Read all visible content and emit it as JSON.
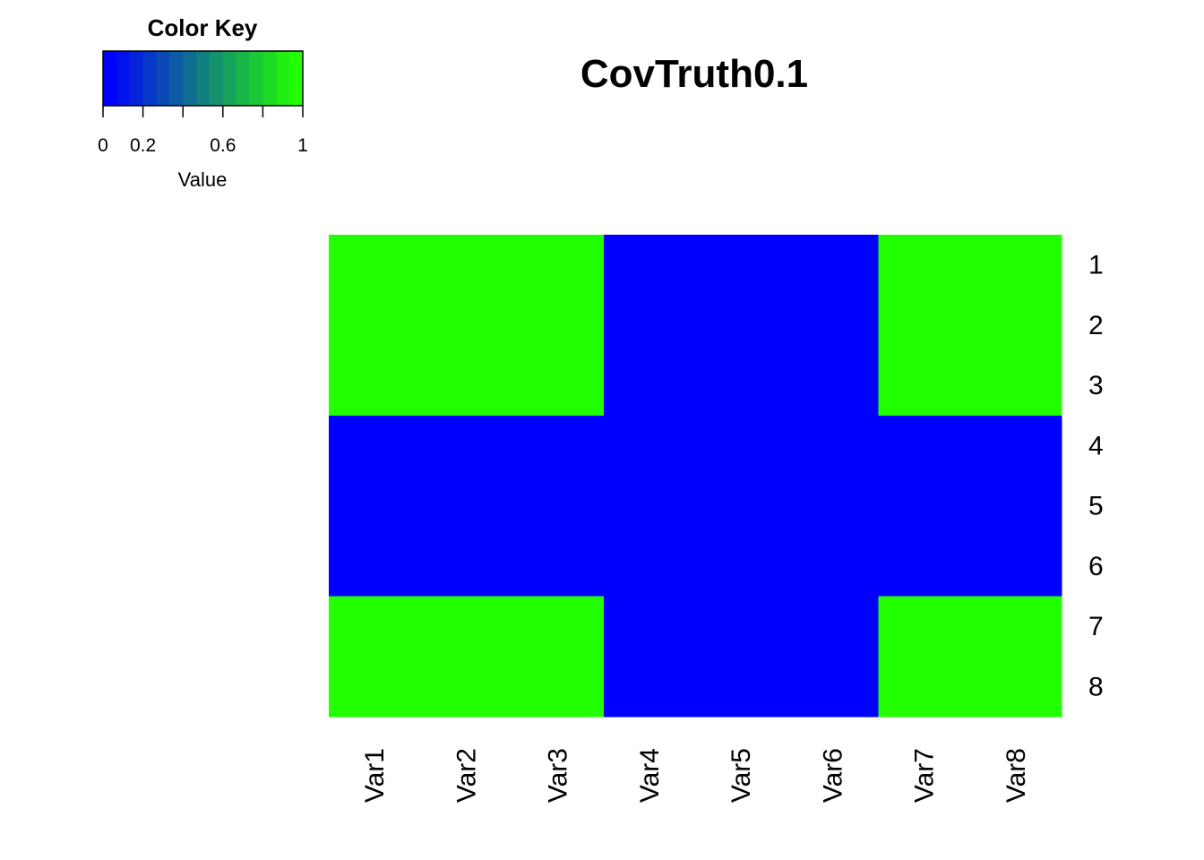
{
  "chart_data": {
    "type": "heatmap",
    "title": "CovTruth0.1",
    "rows": [
      "1",
      "2",
      "3",
      "4",
      "5",
      "6",
      "7",
      "8"
    ],
    "columns": [
      "Var1",
      "Var2",
      "Var3",
      "Var4",
      "Var5",
      "Var6",
      "Var7",
      "Var8"
    ],
    "values": [
      [
        1,
        1,
        1,
        0,
        0,
        0,
        1,
        1
      ],
      [
        1,
        1,
        1,
        0,
        0,
        0,
        1,
        1
      ],
      [
        1,
        1,
        1,
        0,
        0,
        0,
        1,
        1
      ],
      [
        0,
        0,
        0,
        0,
        0,
        0,
        0,
        0
      ],
      [
        0,
        0,
        0,
        0,
        0,
        0,
        0,
        0
      ],
      [
        0,
        0,
        0,
        0,
        0,
        0,
        0,
        0
      ],
      [
        1,
        1,
        1,
        0,
        0,
        0,
        1,
        1
      ],
      [
        1,
        1,
        1,
        0,
        0,
        0,
        1,
        1
      ]
    ],
    "color_low": "#0000FF",
    "color_high": "#22FF00",
    "color_key": {
      "title": "Color Key",
      "xlabel": "Value",
      "range": [
        0,
        1
      ],
      "ticks": [
        "0",
        "0.2",
        "0.6",
        "1"
      ],
      "tick_values": [
        0,
        0.2,
        0.4,
        0.6,
        0.8,
        1
      ],
      "tick_labels": [
        "0",
        "0.2",
        "",
        "0.6",
        "",
        "1"
      ],
      "bins": 15
    }
  }
}
